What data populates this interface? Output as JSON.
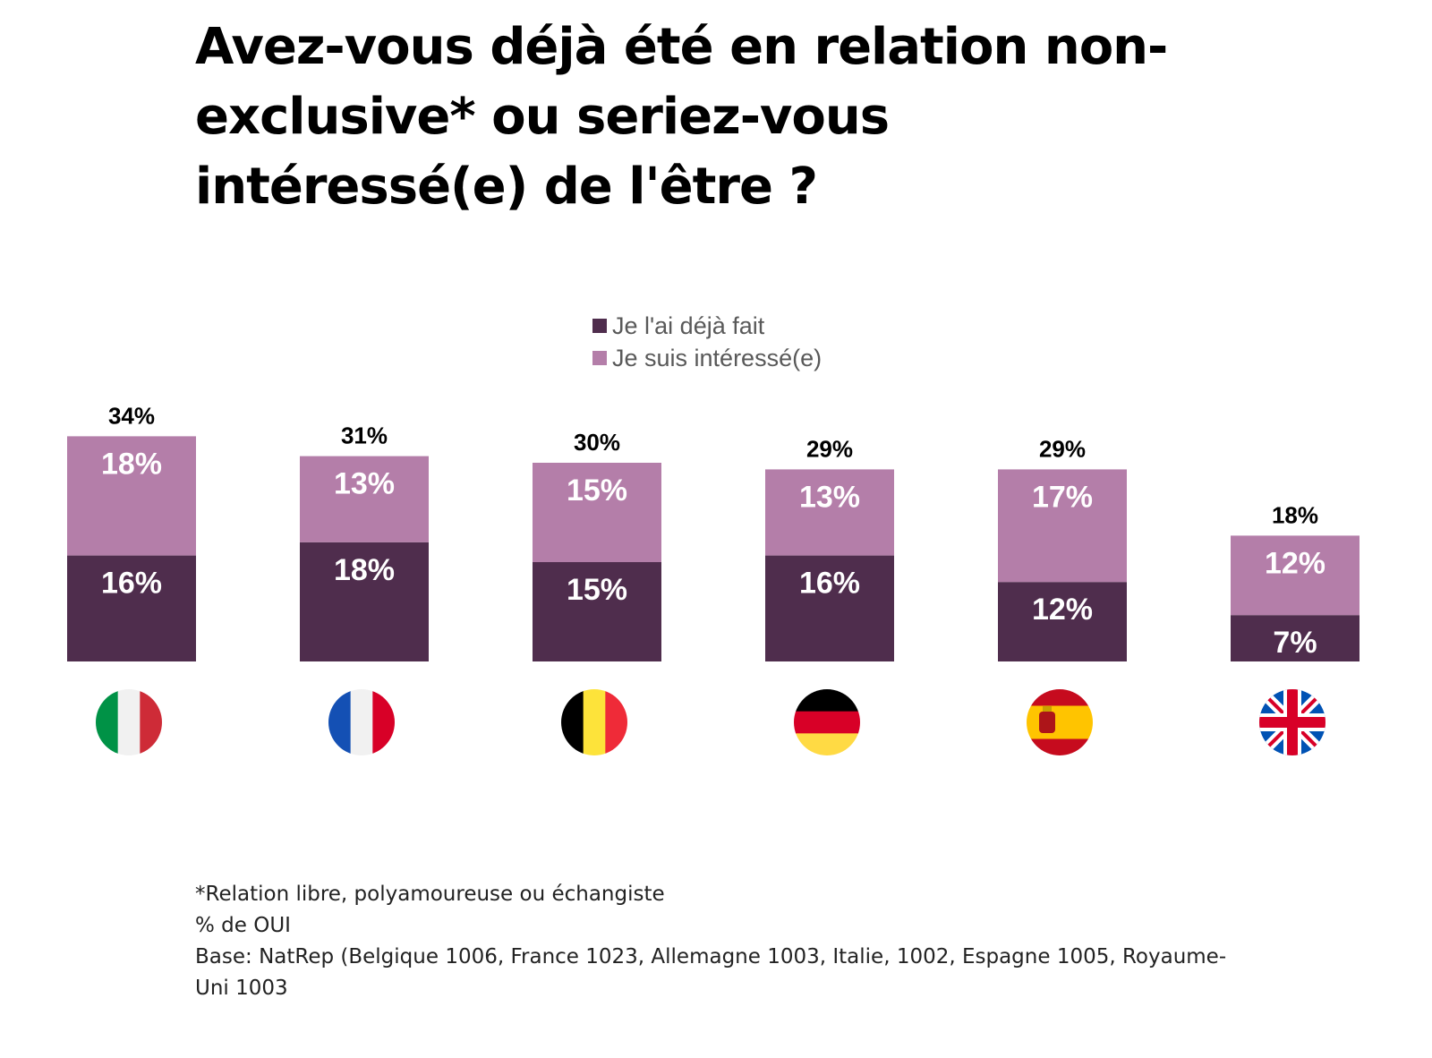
{
  "chart_data": {
    "type": "bar",
    "stacked": true,
    "title": "Avez-vous déjà été en relation non-exclusive* ou seriez-vous intéressé(e) de l'être ?",
    "title_lines": [
      "Avez-vous déjà été en relation non-",
      "exclusive* ou seriez-vous",
      "intéressé(e) de l'être ?"
    ],
    "xlabel": "",
    "ylabel": "",
    "ylim": [
      0,
      40
    ],
    "grid": false,
    "legend_position": "top-center",
    "categories": [
      "Italie",
      "France",
      "Belgique",
      "Allemagne",
      "Espagne",
      "Royaume-Uni"
    ],
    "category_icons": [
      "flag-italy",
      "flag-france",
      "flag-belgium",
      "flag-germany",
      "flag-spain",
      "flag-uk"
    ],
    "series": [
      {
        "name": "Je l'ai déjà fait",
        "color": "#4f2d4d",
        "values": [
          16,
          18,
          15,
          16,
          12,
          7
        ],
        "labels": [
          "16%",
          "18%",
          "15%",
          "16%",
          "12%",
          "7%"
        ]
      },
      {
        "name": "Je suis intéressé(e)",
        "color": "#b47ea9",
        "values": [
          18,
          13,
          15,
          13,
          17,
          12
        ],
        "labels": [
          "18%",
          "13%",
          "15%",
          "13%",
          "17%",
          "12%"
        ]
      }
    ],
    "totals": [
      34,
      31,
      30,
      29,
      29,
      18
    ],
    "total_labels": [
      "34%",
      "31%",
      "30%",
      "29%",
      "29%",
      "18%"
    ]
  },
  "legend": [
    {
      "label": "Je l'ai déjà fait",
      "color": "#4f2d4d"
    },
    {
      "label": "Je suis intéressé(e)",
      "color": "#b47ea9"
    }
  ],
  "notes": [
    "*Relation libre, polyamoureuse ou échangiste",
    "% de OUI",
    "Base: NatRep (Belgique 1006, France 1023, Allemagne 1003, Italie, 1002, Espagne 1005, Royaume-",
    "Uni 1003"
  ]
}
